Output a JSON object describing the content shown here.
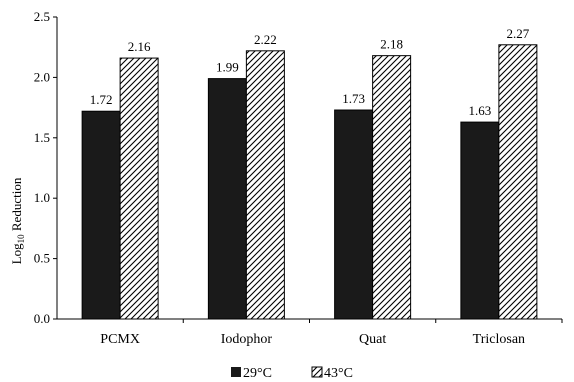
{
  "chart_data": {
    "type": "bar",
    "categories": [
      "PCMX",
      "Iodophor",
      "Quat",
      "Triclosan"
    ],
    "series": [
      {
        "name": "29°C",
        "values": [
          1.72,
          1.99,
          1.73,
          1.63
        ],
        "color": "#1a1a1a",
        "pattern": "solid"
      },
      {
        "name": "43°C",
        "values": [
          2.16,
          2.22,
          2.18,
          2.27
        ],
        "color": "#ffffff",
        "pattern": "diagonal-hatch"
      }
    ],
    "data_labels": [
      [
        "1.72",
        "1.99",
        "1.73",
        "1.63"
      ],
      [
        "2.16",
        "2.22",
        "2.18",
        "2.27"
      ]
    ],
    "yticks": [
      "0.0",
      "0.5",
      "1.0",
      "1.5",
      "2.0",
      "2.5"
    ],
    "ylabel": "Log10 Reduction",
    "ylabel_main": "Log",
    "ylabel_sub": "10",
    "ylabel_rest": " Reduction",
    "ylim": [
      0,
      2.5
    ],
    "grid": false,
    "legend_position": "bottom-center"
  }
}
